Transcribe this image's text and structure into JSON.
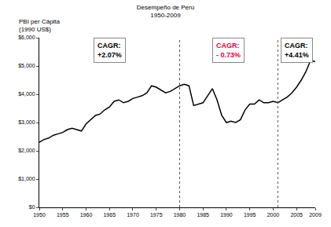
{
  "chart_data": {
    "type": "line",
    "title": [
      "Desempeño de Perú",
      "1950-2009"
    ],
    "y_label": [
      "PBI per Cápita",
      "(1990 US$)"
    ],
    "x": [
      1950,
      1951,
      1952,
      1953,
      1954,
      1955,
      1956,
      1957,
      1958,
      1959,
      1960,
      1961,
      1962,
      1963,
      1964,
      1965,
      1966,
      1967,
      1968,
      1969,
      1970,
      1971,
      1972,
      1973,
      1974,
      1975,
      1976,
      1977,
      1978,
      1979,
      1980,
      1981,
      1982,
      1983,
      1984,
      1985,
      1986,
      1987,
      1988,
      1989,
      1990,
      1991,
      1992,
      1993,
      1994,
      1995,
      1996,
      1997,
      1998,
      1999,
      2000,
      2001,
      2002,
      2003,
      2004,
      2005,
      2006,
      2007,
      2008,
      2009
    ],
    "values": [
      2300,
      2400,
      2450,
      2550,
      2600,
      2650,
      2750,
      2800,
      2750,
      2700,
      2950,
      3100,
      3250,
      3300,
      3450,
      3550,
      3750,
      3800,
      3700,
      3750,
      3850,
      3900,
      3950,
      4050,
      4300,
      4250,
      4150,
      4050,
      4100,
      4200,
      4300,
      4350,
      4300,
      3600,
      3650,
      3700,
      3950,
      4200,
      3800,
      3250,
      3000,
      3050,
      3000,
      3100,
      3450,
      3650,
      3650,
      3800,
      3700,
      3700,
      3750,
      3700,
      3800,
      3900,
      4050,
      4250,
      4500,
      4800,
      5200,
      5150
    ],
    "color": "#000000",
    "xlim": [
      1950,
      2009
    ],
    "xticks": [
      1950,
      1955,
      1960,
      1965,
      1970,
      1975,
      1980,
      1985,
      1990,
      1995,
      2000,
      2005,
      2009
    ],
    "ylim": [
      0,
      6000
    ],
    "yticks": [
      {
        "value": 0,
        "label": "$0"
      },
      {
        "value": 1000,
        "label": "$1,000"
      },
      {
        "value": 2000,
        "label": "$2,000"
      },
      {
        "value": 3000,
        "label": "$3,000"
      },
      {
        "value": 4000,
        "label": "$4,000"
      },
      {
        "value": 5000,
        "label": "$5,000"
      },
      {
        "value": 6000,
        "label": "$6,000"
      }
    ],
    "grid": false,
    "vlines": [
      1980,
      2001
    ],
    "annotations": [
      {
        "text": [
          "CAGR:",
          "+2.07%"
        ],
        "color": "#000000"
      },
      {
        "text": [
          "CAGR:",
          "- 0.73%"
        ],
        "color": "#e8003c"
      },
      {
        "text": [
          "CAGR:",
          "+4.41%"
        ],
        "color": "#000000"
      }
    ]
  }
}
